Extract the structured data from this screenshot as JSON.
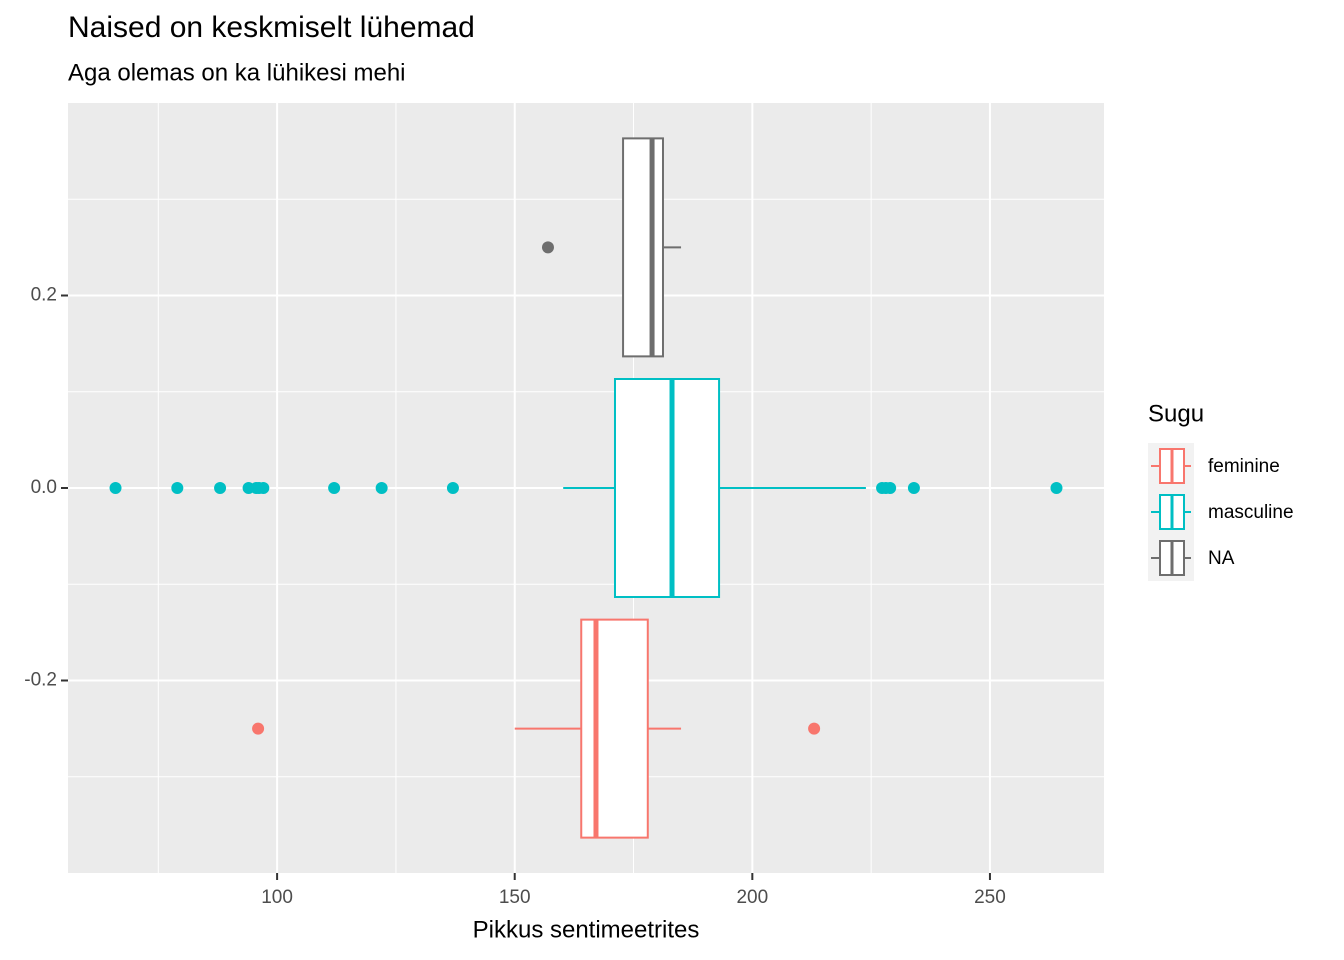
{
  "chart_data": {
    "type": "boxplot",
    "title": "Naised on keskmiselt lühemad",
    "subtitle": "Aga olemas on ka lühikesi mehi",
    "x_label": "Pikkus sentimeetrites",
    "legend_title": "Sugu",
    "xlim": [
      56,
      274
    ],
    "xticks": [
      100,
      150,
      200,
      250
    ],
    "ylim": [
      -0.4,
      0.4
    ],
    "yticks": [
      -0.2,
      {
        "value": 0,
        "label": "0.0"
      },
      0.2
    ],
    "grid": true,
    "legend": "right",
    "series": [
      {
        "name": "feminine",
        "color": "#F8766D",
        "position": -0.25,
        "whisker_low": 150,
        "q1": 164,
        "median": 167.1,
        "q3": 178,
        "whisker_high": 185,
        "outliers": [
          96,
          213
        ]
      },
      {
        "name": "masculine",
        "color": "#00BFC4",
        "position": 0,
        "whisker_low": 160.2,
        "q1": 171.1,
        "median": 183.1,
        "q3": 193,
        "whisker_high": 223.9,
        "outliers": [
          66,
          79,
          88,
          94,
          95.6,
          96.2,
          97.1,
          112,
          122,
          137,
          227.3,
          228.1,
          229,
          234,
          264
        ]
      },
      {
        "name": "NA",
        "color": "#6E6E6E",
        "position": 0.25,
        "whisker_low": 172.8,
        "q1": 172.8,
        "median": 178.9,
        "q3": 181.2,
        "whisker_high": 185,
        "outliers": [
          157
        ]
      }
    ]
  }
}
